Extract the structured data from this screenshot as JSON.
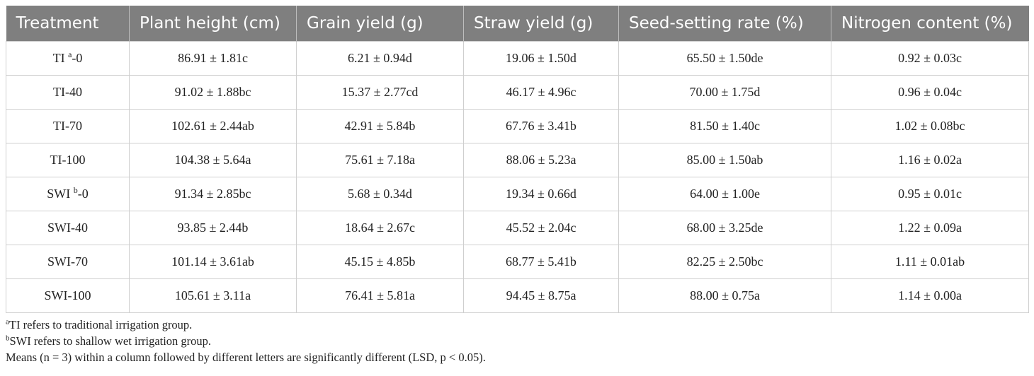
{
  "table": {
    "headers": [
      "Treatment",
      "Plant height (cm)",
      "Grain yield (g)",
      "Straw yield (g)",
      "Seed-setting rate (%)",
      "Nitrogen content (%)"
    ],
    "rows": [
      {
        "treatment": {
          "base": "TI",
          "sup": "a",
          "suffix": "-0"
        },
        "cells": [
          "86.91 ± 1.81c",
          "6.21 ± 0.94d",
          "19.06 ± 1.50d",
          "65.50 ± 1.50de",
          "0.92 ± 0.03c"
        ]
      },
      {
        "treatment": {
          "base": "TI-40",
          "sup": "",
          "suffix": ""
        },
        "cells": [
          "91.02 ± 1.88bc",
          "15.37 ± 2.77cd",
          "46.17 ± 4.96c",
          "70.00 ± 1.75d",
          "0.96 ± 0.04c"
        ]
      },
      {
        "treatment": {
          "base": "TI-70",
          "sup": "",
          "suffix": ""
        },
        "cells": [
          "102.61 ± 2.44ab",
          "42.91 ± 5.84b",
          "67.76 ± 3.41b",
          "81.50 ± 1.40c",
          "1.02 ± 0.08bc"
        ]
      },
      {
        "treatment": {
          "base": "TI-100",
          "sup": "",
          "suffix": ""
        },
        "cells": [
          "104.38 ± 5.64a",
          "75.61 ± 7.18a",
          "88.06 ± 5.23a",
          "85.00 ± 1.50ab",
          "1.16 ± 0.02a"
        ]
      },
      {
        "treatment": {
          "base": "SWI",
          "sup": "b",
          "suffix": "-0"
        },
        "cells": [
          "91.34 ± 2.85bc",
          "5.68 ± 0.34d",
          "19.34 ± 0.66d",
          "64.00 ± 1.00e",
          "0.95 ± 0.01c"
        ]
      },
      {
        "treatment": {
          "base": "SWI-40",
          "sup": "",
          "suffix": ""
        },
        "cells": [
          "93.85 ± 2.44b",
          "18.64 ± 2.67c",
          "45.52 ± 2.04c",
          "68.00 ± 3.25de",
          "1.22 ± 0.09a"
        ]
      },
      {
        "treatment": {
          "base": "SWI-70",
          "sup": "",
          "suffix": ""
        },
        "cells": [
          "101.14 ± 3.61ab",
          "45.15 ± 4.85b",
          "68.77 ± 5.41b",
          "82.25 ± 2.50bc",
          "1.11 ± 0.01ab"
        ]
      },
      {
        "treatment": {
          "base": "SWI-100",
          "sup": "",
          "suffix": ""
        },
        "cells": [
          "105.61 ± 3.11a",
          "76.41 ± 5.81a",
          "94.45 ± 8.75a",
          "88.00 ± 0.75a",
          "1.14 ± 0.00a"
        ]
      }
    ]
  },
  "notes": [
    {
      "sup": "a",
      "text": "TI refers to traditional irrigation group."
    },
    {
      "sup": "b",
      "text": "SWI refers to shallow wet irrigation group."
    },
    {
      "sup": "",
      "text": "Means (n = 3) within a column followed by different letters are significantly different (LSD, p < 0.05)."
    }
  ],
  "colors": {
    "header_bg": "#7f7f7f",
    "header_text": "#ffffff",
    "border": "#cfcfcf"
  }
}
